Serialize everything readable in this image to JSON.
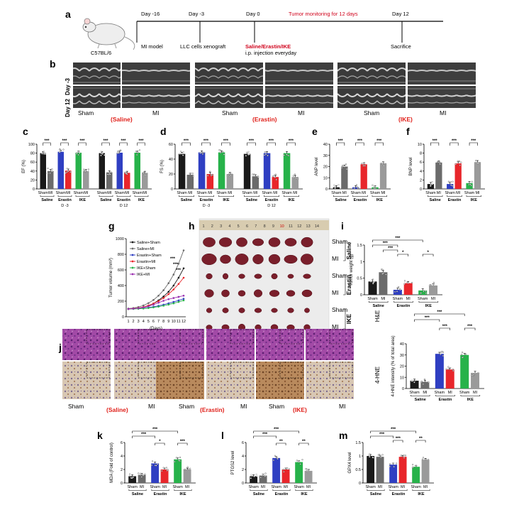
{
  "colors": {
    "sham": "#1a1a1a",
    "mi": "#6b6b6b",
    "saline_sham": "#1a1a1a",
    "saline_mi": "#6b6b6b",
    "erastin_sham": "#2f3fc2",
    "erastin_mi": "#e8262b",
    "ike_sham": "#27b24a",
    "ike_mi": "#9a9a9a",
    "highlight_red": "#e0211b"
  },
  "panel_labels": [
    "a",
    "b",
    "c",
    "d",
    "e",
    "f",
    "g",
    "h",
    "i",
    "j",
    "k",
    "l",
    "m"
  ],
  "panel_a": {
    "mouse_label": "C57BL/6",
    "events": [
      {
        "day": "Day -16",
        "text": "MI model"
      },
      {
        "day": "Day -3",
        "text": "LLC cells xenograft"
      },
      {
        "day": "Day 0",
        "text_red": "Saline/Erastin/IKE",
        "text": "i.p. injection everyday"
      },
      {
        "day": "Day 12",
        "text": "Sacrifice"
      }
    ],
    "monitor_text": "Tumor monitoring for 12 days"
  },
  "panel_b": {
    "rows": [
      "Day -3",
      "Day 12"
    ],
    "groups": [
      {
        "sham": "Sham",
        "mi": "MI",
        "name": "(Saline)"
      },
      {
        "sham": "Sham",
        "mi": "MI",
        "name": "(Erastin)"
      },
      {
        "sham": "Sham",
        "mi": "MI",
        "name": "(IKE)"
      }
    ]
  },
  "chart_data": [
    {
      "panel": "c",
      "type": "bar",
      "ylabel": "EF (%)",
      "ylim": [
        0,
        100
      ],
      "yticks": [
        0,
        20,
        40,
        60,
        80,
        100
      ],
      "blocks": [
        {
          "label": "D -3",
          "groups": [
            {
              "name": "Saline",
              "bars": [
                {
                  "name": "Sham",
                  "value": 80
                },
                {
                  "name": "MI",
                  "value": 40
                }
              ]
            },
            {
              "name": "Erastin",
              "bars": [
                {
                  "name": "Sham",
                  "value": 83
                },
                {
                  "name": "MI",
                  "value": 41
                }
              ]
            },
            {
              "name": "IKE",
              "bars": [
                {
                  "name": "Sham",
                  "value": 81
                },
                {
                  "name": "MI",
                  "value": 40
                }
              ]
            }
          ]
        },
        {
          "label": "D 12",
          "groups": [
            {
              "name": "Saline",
              "bars": [
                {
                  "name": "Sham",
                  "value": 80
                },
                {
                  "name": "MI",
                  "value": 37
                }
              ]
            },
            {
              "name": "Erastin",
              "bars": [
                {
                  "name": "Sham",
                  "value": 81
                },
                {
                  "name": "MI",
                  "value": 36
                }
              ]
            },
            {
              "name": "IKE",
              "bars": [
                {
                  "name": "Sham",
                  "value": 81
                },
                {
                  "name": "MI",
                  "value": 36
                }
              ]
            }
          ]
        }
      ],
      "significance": "***"
    },
    {
      "panel": "d",
      "type": "bar",
      "ylabel": "FS (%)",
      "ylim": [
        0,
        60
      ],
      "yticks": [
        0,
        20,
        40,
        60
      ],
      "blocks": [
        {
          "label": "D -3",
          "groups": [
            {
              "name": "Saline",
              "bars": [
                {
                  "name": "Sham",
                  "value": 47
                },
                {
                  "name": "MI",
                  "value": 19
                }
              ]
            },
            {
              "name": "Erastin",
              "bars": [
                {
                  "name": "Sham",
                  "value": 49
                },
                {
                  "name": "MI",
                  "value": 20
                }
              ]
            },
            {
              "name": "IKE",
              "bars": [
                {
                  "name": "Sham",
                  "value": 49
                },
                {
                  "name": "MI",
                  "value": 20
                }
              ]
            }
          ]
        },
        {
          "label": "D 12",
          "groups": [
            {
              "name": "Saline",
              "bars": [
                {
                  "name": "Sham",
                  "value": 47
                },
                {
                  "name": "MI",
                  "value": 17
                }
              ]
            },
            {
              "name": "Erastin",
              "bars": [
                {
                  "name": "Sham",
                  "value": 48
                },
                {
                  "name": "MI",
                  "value": 16
                }
              ]
            },
            {
              "name": "IKE",
              "bars": [
                {
                  "name": "Sham",
                  "value": 48
                },
                {
                  "name": "MI",
                  "value": 16
                }
              ]
            }
          ]
        }
      ],
      "significance": "***"
    },
    {
      "panel": "e",
      "type": "bar",
      "ylabel": "ANP level",
      "ylim": [
        0,
        40
      ],
      "yticks": [
        0,
        10,
        20,
        30,
        40
      ],
      "blocks": [
        {
          "label": "",
          "groups": [
            {
              "name": "Saline",
              "bars": [
                {
                  "name": "Sham",
                  "value": 1.5
                },
                {
                  "name": "MI",
                  "value": 20
                }
              ]
            },
            {
              "name": "Erastin",
              "bars": [
                {
                  "name": "Sham",
                  "value": 1.5
                },
                {
                  "name": "MI",
                  "value": 22
                }
              ]
            },
            {
              "name": "IKE",
              "bars": [
                {
                  "name": "Sham",
                  "value": 1.5
                },
                {
                  "name": "MI",
                  "value": 23
                }
              ]
            }
          ]
        }
      ],
      "significance": "***"
    },
    {
      "panel": "f",
      "type": "bar",
      "ylabel": "BNP level",
      "ylim": [
        0,
        10
      ],
      "yticks": [
        0,
        2,
        4,
        6,
        8,
        10
      ],
      "blocks": [
        {
          "label": "",
          "groups": [
            {
              "name": "Saline",
              "bars": [
                {
                  "name": "Sham",
                  "value": 1.1
                },
                {
                  "name": "MI",
                  "value": 5.9
                }
              ]
            },
            {
              "name": "Erastin",
              "bars": [
                {
                  "name": "Sham",
                  "value": 1.1
                },
                {
                  "name": "MI",
                  "value": 5.7
                }
              ]
            },
            {
              "name": "IKE",
              "bars": [
                {
                  "name": "Sham",
                  "value": 1.3
                },
                {
                  "name": "MI",
                  "value": 6.0
                }
              ]
            }
          ]
        }
      ],
      "significance": "***"
    },
    {
      "panel": "g",
      "type": "line",
      "ylabel": "Tumor volume (mm³)",
      "xlabel": "(Days)",
      "ylim": [
        0,
        1000
      ],
      "yticks": [
        0,
        200,
        400,
        600,
        800,
        1000
      ],
      "x": [
        1,
        2,
        3,
        4,
        5,
        6,
        7,
        8,
        9,
        10,
        11,
        12
      ],
      "series": [
        {
          "name": "Saline+Sham",
          "values": [
            100,
            105,
            110,
            120,
            140,
            170,
            210,
            260,
            320,
            400,
            500,
            620
          ]
        },
        {
          "name": "Saline+MI",
          "values": [
            105,
            112,
            125,
            145,
            175,
            215,
            270,
            340,
            430,
            540,
            680,
            850
          ]
        },
        {
          "name": "Erastin+Sham",
          "values": [
            100,
            102,
            105,
            110,
            118,
            128,
            140,
            155,
            172,
            190,
            210,
            230
          ]
        },
        {
          "name": "Erastin+MI",
          "values": [
            100,
            105,
            112,
            125,
            145,
            170,
            200,
            240,
            290,
            350,
            420,
            500
          ]
        },
        {
          "name": "IKE+Sham",
          "values": [
            100,
            101,
            103,
            106,
            112,
            120,
            130,
            142,
            156,
            172,
            190,
            210
          ]
        },
        {
          "name": "IKE+MI",
          "values": [
            100,
            104,
            110,
            120,
            135,
            155,
            180,
            205,
            225,
            240,
            255,
            270
          ]
        }
      ],
      "significance": "***"
    },
    {
      "panel": "i",
      "type": "bar",
      "ylabel": "Tumor weight (g)",
      "ylim": [
        0,
        1.5
      ],
      "yticks": [
        0.0,
        0.5,
        1.0,
        1.5
      ],
      "blocks": [
        {
          "label": "",
          "groups": [
            {
              "name": "Saline",
              "bars": [
                {
                  "name": "Sham",
                  "value": 0.4
                },
                {
                  "name": "MI",
                  "value": 0.68
                }
              ]
            },
            {
              "name": "Erastin",
              "bars": [
                {
                  "name": "Sham",
                  "value": 0.15
                },
                {
                  "name": "MI",
                  "value": 0.35
                }
              ]
            },
            {
              "name": "IKE",
              "bars": [
                {
                  "name": "Sham",
                  "value": 0.13
                },
                {
                  "name": "MI",
                  "value": 0.28
                }
              ]
            }
          ]
        }
      ],
      "sig_labels": [
        "***",
        "***",
        "***",
        "*",
        "*"
      ]
    },
    {
      "panel": "j_chart",
      "type": "bar",
      "ylabel": "4-HNE intensity (% of total area)",
      "ylim": [
        0,
        40
      ],
      "yticks": [
        0,
        10,
        20,
        30,
        40
      ],
      "blocks": [
        {
          "label": "",
          "groups": [
            {
              "name": "Saline",
              "bars": [
                {
                  "name": "Sham",
                  "value": 7
                },
                {
                  "name": "MI",
                  "value": 6
                }
              ]
            },
            {
              "name": "Erastin",
              "bars": [
                {
                  "name": "Sham",
                  "value": 31
                },
                {
                  "name": "MI",
                  "value": 17
                }
              ]
            },
            {
              "name": "IKE",
              "bars": [
                {
                  "name": "Sham",
                  "value": 30
                },
                {
                  "name": "MI",
                  "value": 14
                }
              ]
            }
          ]
        }
      ],
      "sig_labels": [
        "***",
        "***",
        "***",
        "***"
      ]
    },
    {
      "panel": "k",
      "type": "bar",
      "ylabel": "MDA (Fold of control)",
      "ylim": [
        0,
        6
      ],
      "yticks": [
        0,
        2,
        4,
        6
      ],
      "blocks": [
        {
          "label": "",
          "groups": [
            {
              "name": "Saline",
              "bars": [
                {
                  "name": "Sham",
                  "value": 1.0
                },
                {
                  "name": "MI",
                  "value": 1.2
                }
              ]
            },
            {
              "name": "Erastin",
              "bars": [
                {
                  "name": "Sham",
                  "value": 2.9
                },
                {
                  "name": "MI",
                  "value": 2.0
                }
              ]
            },
            {
              "name": "IKE",
              "bars": [
                {
                  "name": "Sham",
                  "value": 3.5
                },
                {
                  "name": "MI",
                  "value": 2.0
                }
              ]
            }
          ]
        }
      ],
      "sig_labels": [
        "***",
        "***",
        "*",
        "***"
      ]
    },
    {
      "panel": "l",
      "type": "bar",
      "ylabel": "PTGS2 level",
      "ylim": [
        0,
        6
      ],
      "yticks": [
        0,
        2,
        4,
        6
      ],
      "blocks": [
        {
          "label": "",
          "groups": [
            {
              "name": "Saline",
              "bars": [
                {
                  "name": "Sham",
                  "value": 1.0
                },
                {
                  "name": "MI",
                  "value": 1.1
                }
              ]
            },
            {
              "name": "Erastin",
              "bars": [
                {
                  "name": "Sham",
                  "value": 3.7
                },
                {
                  "name": "MI",
                  "value": 2.0
                }
              ]
            },
            {
              "name": "IKE",
              "bars": [
                {
                  "name": "Sham",
                  "value": 3.1
                },
                {
                  "name": "MI",
                  "value": 1.8
                }
              ]
            }
          ]
        }
      ],
      "sig_labels": [
        "***",
        "***",
        "**",
        "**"
      ]
    },
    {
      "panel": "m",
      "type": "bar",
      "ylabel": "GPX4 level",
      "ylim": [
        0,
        1.5
      ],
      "yticks": [
        0.0,
        0.5,
        1.0,
        1.5
      ],
      "blocks": [
        {
          "label": "",
          "groups": [
            {
              "name": "Saline",
              "bars": [
                {
                  "name": "Sham",
                  "value": 1.0
                },
                {
                  "name": "MI",
                  "value": 0.97
                }
              ]
            },
            {
              "name": "Erastin",
              "bars": [
                {
                  "name": "Sham",
                  "value": 0.68
                },
                {
                  "name": "MI",
                  "value": 0.97
                }
              ]
            },
            {
              "name": "IKE",
              "bars": [
                {
                  "name": "Sham",
                  "value": 0.6
                },
                {
                  "name": "MI",
                  "value": 0.86
                }
              ]
            }
          ]
        }
      ],
      "sig_labels": [
        "***",
        "***",
        "***",
        "**"
      ]
    }
  ],
  "panel_h": {
    "ruler_numbers": [
      "1",
      "2",
      "3",
      "4",
      "5",
      "6",
      "7",
      "8",
      "9",
      "10",
      "11",
      "12",
      "13",
      "14"
    ],
    "rows": [
      {
        "label": "Sham",
        "group": "Saline"
      },
      {
        "label": "MI",
        "group": "Saline"
      },
      {
        "label": "Sham",
        "group": "Erastin"
      },
      {
        "label": "MI",
        "group": "Erastin"
      },
      {
        "label": "Sham",
        "group": "IKE"
      },
      {
        "label": "MI",
        "group": "IKE"
      }
    ]
  },
  "panel_j": {
    "row_labels": [
      "H&E",
      "4-HNE"
    ],
    "groups": [
      {
        "sham": "Sham",
        "mi": "MI",
        "name": "(Saline)"
      },
      {
        "sham": "Sham",
        "mi": "MI",
        "name": "(Erastin)"
      },
      {
        "sham": "Sham",
        "mi": "MI",
        "name": "(IKE)"
      }
    ]
  },
  "axis_labels": {
    "sham": "Sham",
    "mi": "MI",
    "saline": "Saline",
    "erastin": "Erastin",
    "ike": "IKE"
  }
}
